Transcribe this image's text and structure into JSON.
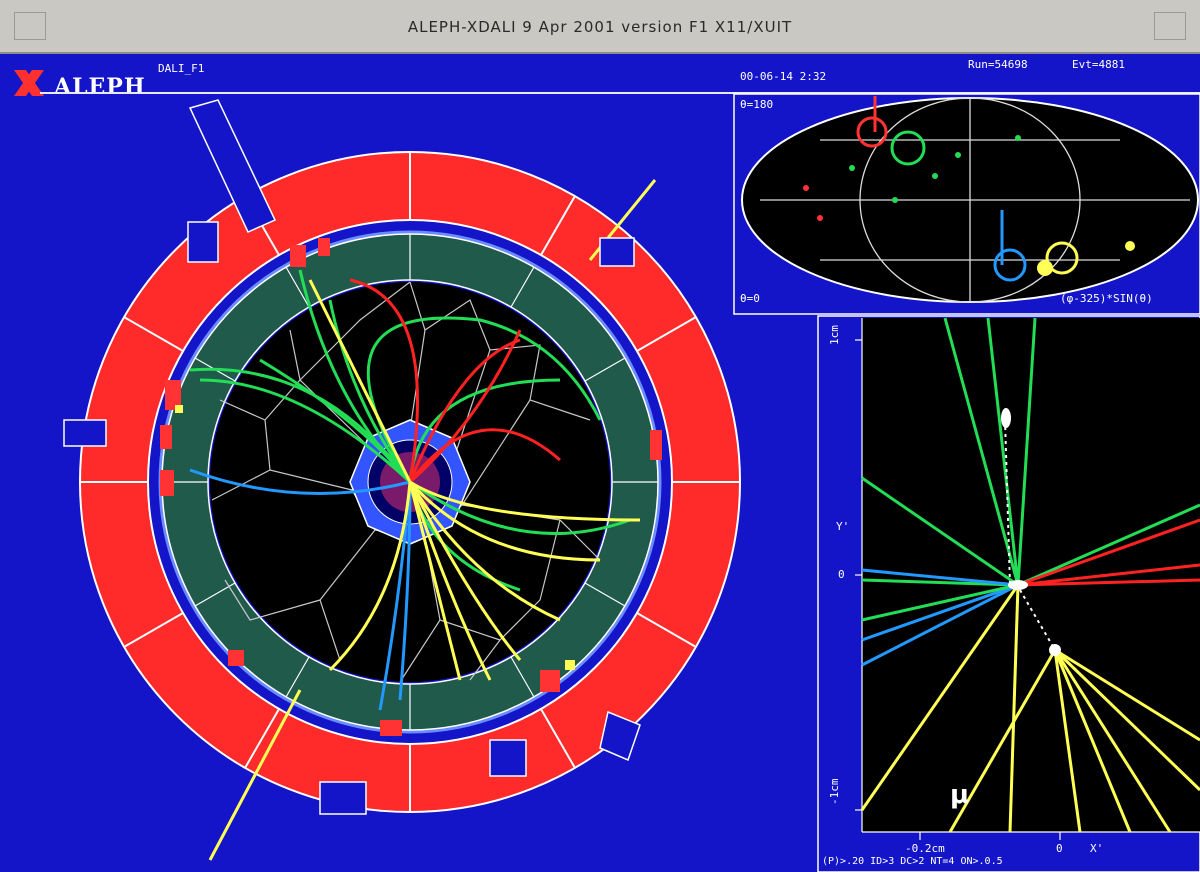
{
  "window": {
    "title": "ALEPH-XDALI   9 Apr 2001  version F1    X11/XUIT"
  },
  "header": {
    "logo_text": "ALEPH",
    "view_name": "DALI_F1",
    "date_time": "00-06-14  2:32",
    "run": "Run=54698",
    "event": "Evt=4881"
  },
  "projection_panel": {
    "theta_top": "θ=180",
    "theta_bottom": "θ=0",
    "formula": "(φ-325)*SIN(θ)"
  },
  "vertex_panel": {
    "y_tick_top": "1cm",
    "y_axis_label": "Y'",
    "y_tick_zero": "0",
    "y_tick_bottom": "-1cm",
    "muon_label": "μ",
    "footer_text": "(P)>.20  ID>3   DC>2   NT=4  ON>.0.5",
    "x_tick_left": "-0.2cm",
    "x_tick_zero": "0",
    "x_axis_label": "X'"
  },
  "colors": {
    "background": "#1414c8",
    "calorimeter": "#ff2a2a",
    "ecal": "#1f5a4a",
    "track_green": "#22cc55",
    "track_yellow": "#ffff55",
    "track_blue": "#2288ff",
    "track_red": "#ff2222"
  }
}
